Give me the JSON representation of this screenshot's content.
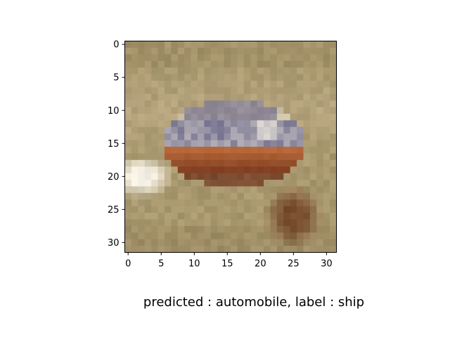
{
  "chart_data": {
    "type": "heatmap",
    "content": "32x32 RGB image",
    "xlim": [
      -0.5,
      31.5
    ],
    "ylim": [
      31.5,
      -0.5
    ],
    "x_ticks": [
      0,
      5,
      10,
      15,
      20,
      25,
      30
    ],
    "y_ticks": [
      0,
      5,
      10,
      15,
      20,
      25,
      30
    ],
    "x_tick_labels": [
      "0",
      "5",
      "10",
      "15",
      "20",
      "25",
      "30"
    ],
    "y_tick_labels": [
      "0",
      "5",
      "10",
      "15",
      "20",
      "25",
      "30"
    ],
    "grid": false
  },
  "caption": "predicted : automobile, label : ship",
  "colors": {
    "background_sand": "#a9986f",
    "light_sand": "#c2b08c",
    "dark_sand": "#8f7d56",
    "hull_orange": "#c06e3c",
    "dark_hull": "#6a2d18",
    "deck_blue": "#5e5c86",
    "cabin_white": "#e3dccd",
    "glare_white": "#f4efe3",
    "rock_brown": "#6f4124"
  }
}
